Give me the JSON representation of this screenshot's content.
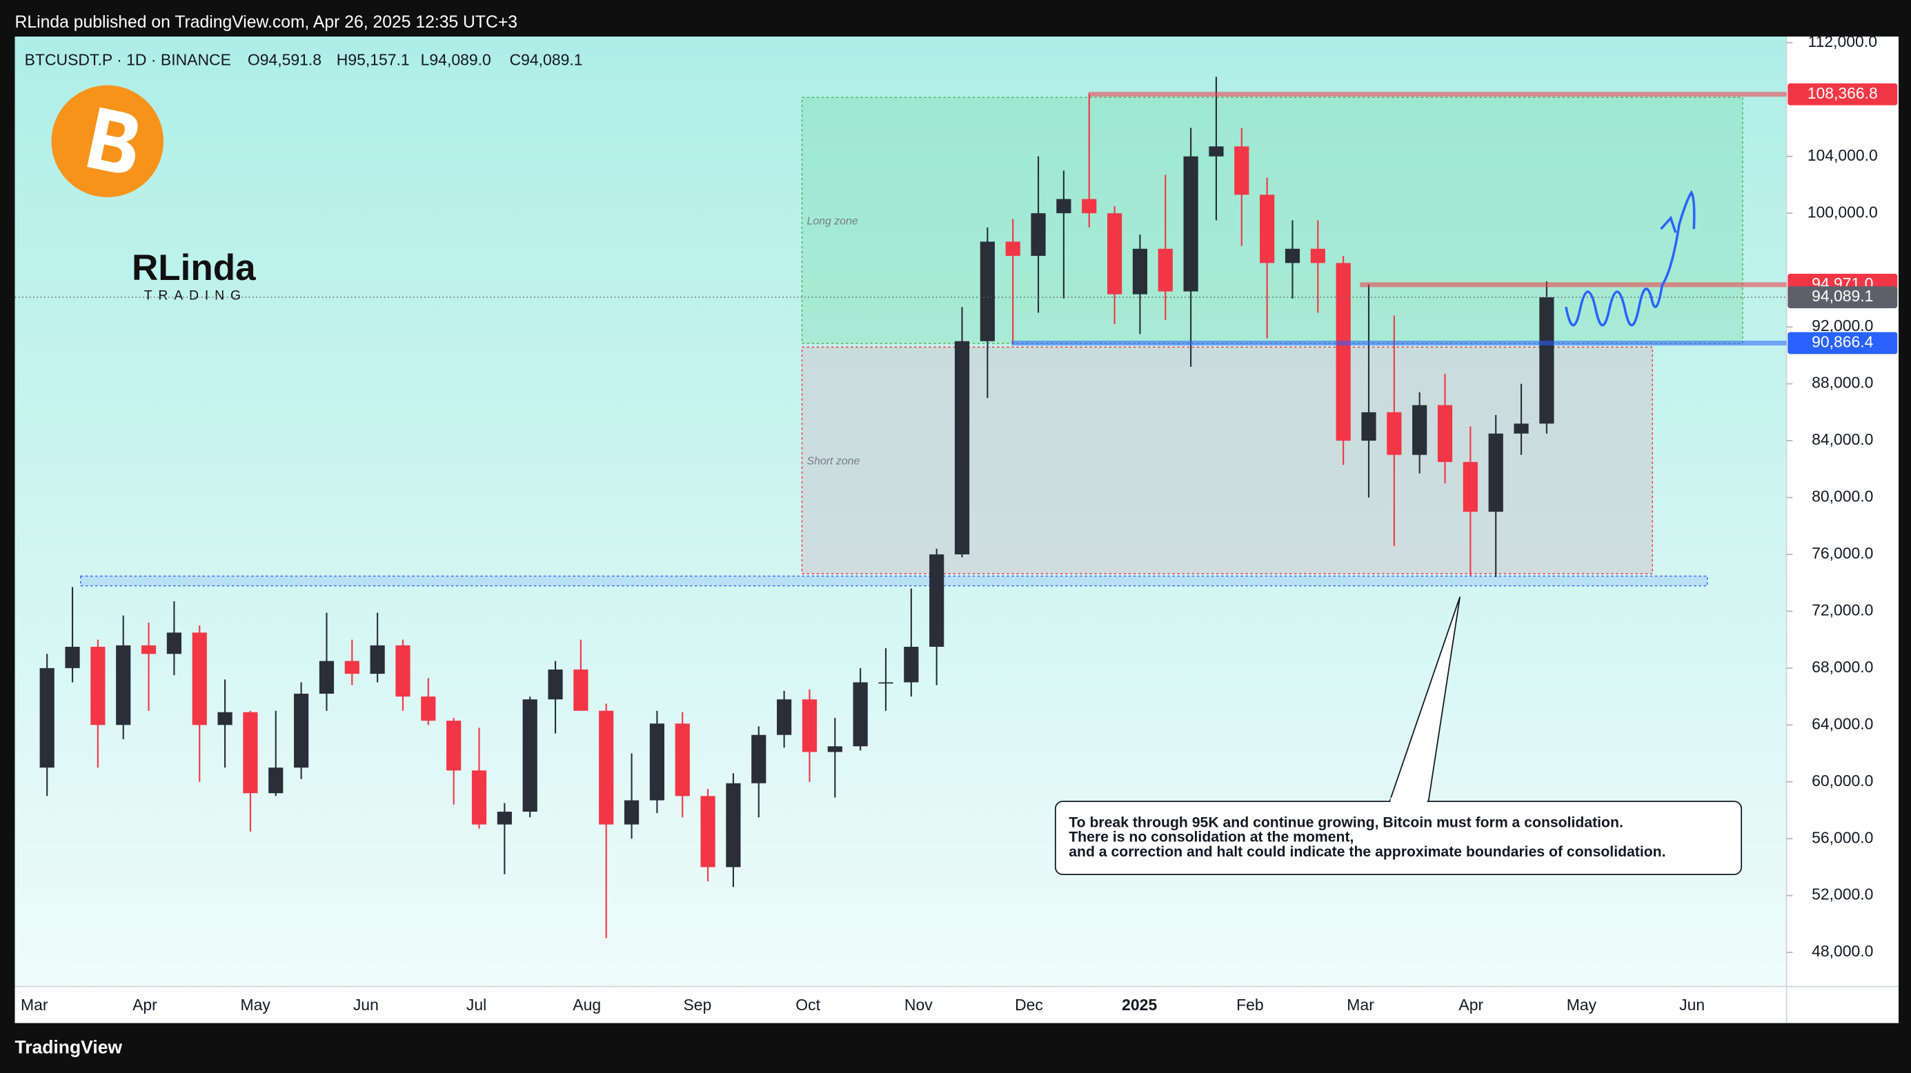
{
  "header": {
    "publisher": "RLinda published on TradingView.com, Apr 26, 2025 12:35 UTC+3",
    "footer": "TradingView"
  },
  "chart_data": {
    "type": "candlestick",
    "symbol": "BTCUSDT.P · 1D · BINANCE",
    "ohlc_text": [
      "O94,591.8",
      "H95,157.1",
      "L94,089.0",
      "C94,089.1"
    ],
    "logo_text": [
      "RLinda",
      "TRADING"
    ],
    "time_labels": [
      "Mar",
      "Apr",
      "May",
      "Jun",
      "Jul",
      "Aug",
      "Sep",
      "Oct",
      "Nov",
      "Dec",
      "2025",
      "Feb",
      "Mar",
      "Apr",
      "May",
      "Jun"
    ],
    "open": [
      61000,
      68000,
      69500,
      64000,
      69600,
      69000,
      70500,
      64000,
      64900,
      59200,
      61000,
      66200,
      68500,
      67600,
      69600,
      66000,
      64300,
      60800,
      57000,
      57900,
      65800,
      67900,
      65000,
      57000,
      58700,
      64100,
      59000,
      54000,
      59900,
      63300,
      65800,
      62100,
      62500,
      67000,
      67000,
      69500,
      76000,
      91000,
      98000,
      97000,
      100000,
      101000,
      100000,
      94300,
      97500,
      94500,
      104000,
      104700,
      101300,
      96500,
      97500,
      96500,
      84000,
      86000,
      83000,
      86500,
      82500,
      79000,
      84500,
      85200
    ],
    "high": [
      69000,
      73700,
      70000,
      71700,
      71200,
      72700,
      71000,
      67200,
      65000,
      65000,
      67000,
      71900,
      70000,
      71900,
      70000,
      67300,
      64500,
      63800,
      58500,
      66000,
      68500,
      70000,
      65500,
      62000,
      65000,
      64900,
      59500,
      60600,
      63900,
      66400,
      66500,
      64500,
      68000,
      69400,
      73600,
      76400,
      93400,
      99000,
      99600,
      104000,
      103000,
      108400,
      100500,
      98500,
      102700,
      106000,
      109600,
      106000,
      102500,
      99500,
      99500,
      97000,
      95000,
      92800,
      87400,
      88700,
      85000,
      85800,
      88000,
      95200
    ],
    "low": [
      59000,
      67000,
      61000,
      63000,
      65000,
      67500,
      60000,
      61000,
      56500,
      59000,
      60200,
      65000,
      66800,
      67000,
      65000,
      64000,
      58400,
      56700,
      53500,
      57500,
      63400,
      65000,
      49000,
      56000,
      57800,
      57500,
      53000,
      52600,
      57500,
      62400,
      60000,
      58900,
      62200,
      65000,
      66000,
      66800,
      75800,
      87000,
      90800,
      93000,
      94000,
      99000,
      92200,
      91500,
      92500,
      89200,
      99500,
      97700,
      91200,
      94000,
      93000,
      82300,
      80000,
      76600,
      81700,
      81000,
      74500,
      74400,
      83000,
      84500
    ],
    "close": [
      68000,
      69500,
      64000,
      69600,
      69000,
      70500,
      64000,
      64900,
      59200,
      61000,
      66200,
      68500,
      67600,
      69600,
      66000,
      64300,
      60800,
      57000,
      57900,
      65800,
      67900,
      65000,
      57000,
      58700,
      64100,
      59000,
      54000,
      59900,
      63300,
      65800,
      62100,
      62500,
      67000,
      67000,
      69500,
      76000,
      91000,
      98000,
      97000,
      100000,
      101000,
      100000,
      94300,
      97500,
      94500,
      104000,
      104700,
      101300,
      96500,
      97500,
      96500,
      84000,
      86000,
      83000,
      86500,
      82500,
      79000,
      84500,
      85200,
      94089.1
    ],
    "up_color": "#2a2e39",
    "down_color": "#f23645",
    "ylim": [
      45600,
      112430
    ],
    "yticks": [
      {
        "value": 112000,
        "label": "112,000.0"
      },
      {
        "value": 104000,
        "label": "104,000.0"
      },
      {
        "value": 100000,
        "label": "100,000.0"
      },
      {
        "value": 92000,
        "label": "92,000.0"
      },
      {
        "value": 88000,
        "label": "88,000.0"
      },
      {
        "value": 84000,
        "label": "84,000.0"
      },
      {
        "value": 80000,
        "label": "80,000.0"
      },
      {
        "value": 76000,
        "label": "76,000.0"
      },
      {
        "value": 72000,
        "label": "72,000.0"
      },
      {
        "value": 68000,
        "label": "68,000.0"
      },
      {
        "value": 64000,
        "label": "64,000.0"
      },
      {
        "value": 60000,
        "label": "60,000.0"
      },
      {
        "value": 56000,
        "label": "56,000.0"
      },
      {
        "value": 52000,
        "label": "52,000.0"
      },
      {
        "value": 48000,
        "label": "48,000.0"
      }
    ],
    "levels": [
      {
        "value": 108366.8,
        "label": "108,366.8",
        "color": "#f23645"
      },
      {
        "value": 94971.0,
        "label": "94,971.0",
        "color": "#f23645"
      },
      {
        "value": 94089.1,
        "label": "94,089.1",
        "color": "#5d606b"
      },
      {
        "value": 90866.4,
        "label": "90,866.4",
        "color": "#2962ff"
      }
    ],
    "zones": [
      "Long zone",
      "Short zone"
    ],
    "annotation": [
      "To break through 95K and continue growing, Bitcoin must form a consolidation.",
      "There is no consolidation at the moment,",
      "and a correction and halt could indicate the approximate boundaries of consolidation."
    ]
  }
}
